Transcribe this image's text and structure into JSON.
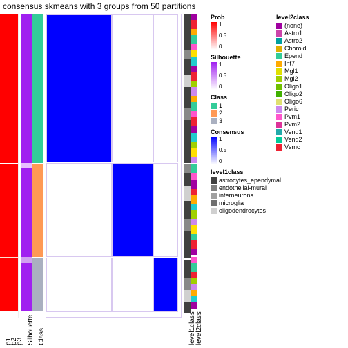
{
  "title": "consensus skmeans with 3 groups from 50 partitions",
  "group_heights": [
    0.49,
    0.31,
    0.18
  ],
  "p_columns": [
    {
      "label": "p1",
      "segs": [
        [
          0.49,
          "#ff0000"
        ],
        [
          0.005,
          "#ffffff"
        ],
        [
          0.305,
          "#ff0000"
        ],
        [
          0.005,
          "#ffe0d0"
        ],
        [
          0.175,
          "#ff0000"
        ]
      ]
    },
    {
      "label": "p2",
      "segs": [
        [
          0.49,
          "#ff0000"
        ],
        [
          0.005,
          "#ffffff"
        ],
        [
          0.305,
          "#ff0000"
        ],
        [
          0.005,
          "#ffe0d0"
        ],
        [
          0.175,
          "#ff0000"
        ]
      ]
    },
    {
      "label": "p3",
      "segs": [
        [
          0.49,
          "#ff0000"
        ],
        [
          0.005,
          "#ffffff"
        ],
        [
          0.305,
          "#ff0000"
        ],
        [
          0.005,
          "#ffe0d0"
        ],
        [
          0.175,
          "#ff0000"
        ]
      ]
    }
  ],
  "silhouette": {
    "label": "Silhouette",
    "segs": [
      [
        0.49,
        "#a020f0"
      ],
      [
        0.02,
        "#e8c0ff"
      ],
      [
        0.29,
        "#a020f0"
      ],
      [
        0.02,
        "#d0a0f0"
      ],
      [
        0.16,
        "#a020f0"
      ]
    ]
  },
  "class_col": {
    "label": "Class",
    "segs": [
      [
        0.49,
        "#33cc99"
      ],
      [
        0.005,
        "#ffffff"
      ],
      [
        0.305,
        "#ff9955"
      ],
      [
        0.005,
        "#ffffff"
      ],
      [
        0.175,
        "#aab0c0"
      ]
    ]
  },
  "heatmap": {
    "widths": [
      0.49,
      0.31,
      0.18
    ],
    "rows": [
      [
        "#0000ff",
        "#ffffff",
        "#ffffff"
      ],
      [
        "#ffffff",
        "#0000ff",
        "#ffffff"
      ],
      [
        "#ffffff",
        "#ffffff",
        "#0000ff"
      ]
    ],
    "border": "#d8c8f0"
  },
  "level1": {
    "label": "level1class",
    "segs": [
      [
        0.12,
        "#404040"
      ],
      [
        0.03,
        "#888888"
      ],
      [
        0.05,
        "#404040"
      ],
      [
        0.04,
        "#d0d0d0"
      ],
      [
        0.07,
        "#404040"
      ],
      [
        0.04,
        "#888888"
      ],
      [
        0.14,
        "#404040"
      ],
      [
        0.005,
        "#ffffff"
      ],
      [
        0.03,
        "#888888"
      ],
      [
        0.04,
        "#404040"
      ],
      [
        0.05,
        "#d0d0d0"
      ],
      [
        0.06,
        "#404040"
      ],
      [
        0.04,
        "#888888"
      ],
      [
        0.09,
        "#404040"
      ],
      [
        0.005,
        "#ffffff"
      ],
      [
        0.06,
        "#404040"
      ],
      [
        0.04,
        "#888888"
      ],
      [
        0.04,
        "#d0d0d0"
      ],
      [
        0.035,
        "#404040"
      ]
    ]
  },
  "level2": {
    "label": "level2class",
    "segs": [
      [
        0.02,
        "#a000a0"
      ],
      [
        0.03,
        "#ee2233"
      ],
      [
        0.02,
        "#ffaa00"
      ],
      [
        0.03,
        "#33cc99"
      ],
      [
        0.02,
        "#ff55cc"
      ],
      [
        0.02,
        "#ffe000"
      ],
      [
        0.03,
        "#22cccc"
      ],
      [
        0.02,
        "#a000a0"
      ],
      [
        0.03,
        "#ee2233"
      ],
      [
        0.02,
        "#a0d000"
      ],
      [
        0.03,
        "#cc88ee"
      ],
      [
        0.02,
        "#ffaa00"
      ],
      [
        0.03,
        "#33cc99"
      ],
      [
        0.02,
        "#ff55cc"
      ],
      [
        0.03,
        "#ee2233"
      ],
      [
        0.02,
        "#a000a0"
      ],
      [
        0.03,
        "#22cccc"
      ],
      [
        0.02,
        "#a0d000"
      ],
      [
        0.03,
        "#ffe000"
      ],
      [
        0.02,
        "#cc88ee"
      ],
      [
        0.005,
        "#ffffff"
      ],
      [
        0.03,
        "#33cc99"
      ],
      [
        0.02,
        "#ff55cc"
      ],
      [
        0.03,
        "#a000a0"
      ],
      [
        0.02,
        "#ee2233"
      ],
      [
        0.03,
        "#ffaa00"
      ],
      [
        0.02,
        "#22cccc"
      ],
      [
        0.03,
        "#a0d000"
      ],
      [
        0.02,
        "#cc88ee"
      ],
      [
        0.03,
        "#ffe000"
      ],
      [
        0.02,
        "#33cc99"
      ],
      [
        0.03,
        "#ee2233"
      ],
      [
        0.02,
        "#a000a0"
      ],
      [
        0.005,
        "#ffffff"
      ],
      [
        0.02,
        "#ff55cc"
      ],
      [
        0.03,
        "#33cc99"
      ],
      [
        0.02,
        "#ee2233"
      ],
      [
        0.02,
        "#a0d000"
      ],
      [
        0.02,
        "#cc88ee"
      ],
      [
        0.02,
        "#ffaa00"
      ],
      [
        0.02,
        "#22cccc"
      ],
      [
        0.02,
        "#a000a0"
      ]
    ]
  },
  "legends_left": [
    {
      "type": "grad",
      "title": "Prob",
      "from": "#ffffff",
      "to": "#ff0000",
      "ticks": [
        "1",
        "0.5",
        "0"
      ]
    },
    {
      "type": "grad",
      "title": "Silhouette",
      "from": "#ffffff",
      "to": "#a020f0",
      "ticks": [
        "1",
        "0.5",
        "0"
      ]
    },
    {
      "type": "cat",
      "title": "Class",
      "items": [
        [
          "1",
          "#33cc99"
        ],
        [
          "2",
          "#ff9955"
        ],
        [
          "3",
          "#aab0c0"
        ]
      ]
    },
    {
      "type": "grad",
      "title": "Consensus",
      "from": "#ffffff",
      "to": "#0000ff",
      "ticks": [
        "1",
        "0.5",
        "0"
      ]
    },
    {
      "type": "cat",
      "title": "level1class",
      "items": [
        [
          "astrocytes_ependymal",
          "#404040"
        ],
        [
          "endothelial-mural",
          "#808080"
        ],
        [
          "interneurons",
          "#a0a0a0"
        ],
        [
          "microglia",
          "#707070"
        ],
        [
          "oligodendrocytes",
          "#d0d0d0"
        ]
      ]
    }
  ],
  "legends_right": [
    {
      "type": "cat",
      "title": "level2class",
      "items": [
        [
          "(none)",
          "#a000a0"
        ],
        [
          "Astro1",
          "#cc44aa"
        ],
        [
          "Astro2",
          "#00a0a0"
        ],
        [
          "Choroid",
          "#e0b000"
        ],
        [
          "Epend",
          "#33cc99"
        ],
        [
          "Int7",
          "#ffaa00"
        ],
        [
          "Mgl1",
          "#e0e000"
        ],
        [
          "Mgl2",
          "#a0d000"
        ],
        [
          "Oligo1",
          "#70c000"
        ],
        [
          "Oligo2",
          "#40b000"
        ],
        [
          "Oligo6",
          "#e0e070"
        ],
        [
          "Peric",
          "#cc88ee"
        ],
        [
          "Pvm1",
          "#ff55cc"
        ],
        [
          "Pvm2",
          "#dd3399"
        ],
        [
          "Vend1",
          "#22aaaa"
        ],
        [
          "Vend2",
          "#00cc99"
        ],
        [
          "Vsmc",
          "#ee2233"
        ]
      ]
    }
  ]
}
